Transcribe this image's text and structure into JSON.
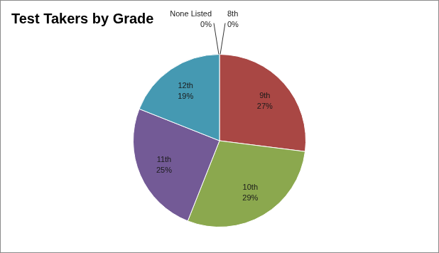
{
  "chart_data": {
    "type": "pie",
    "title": "Test Takers by Grade",
    "categories": [
      "8th",
      "9th",
      "10th",
      "11th",
      "12th",
      "None Listed"
    ],
    "values": [
      0,
      27,
      29,
      25,
      19,
      0
    ],
    "value_labels": [
      "0%",
      "27%",
      "29%",
      "25%",
      "19%",
      "0%"
    ],
    "colors": [
      "#4a78b0",
      "#a94744",
      "#8ba84e",
      "#735a96",
      "#4599b2",
      "#d98a45"
    ],
    "data_labels": true
  }
}
